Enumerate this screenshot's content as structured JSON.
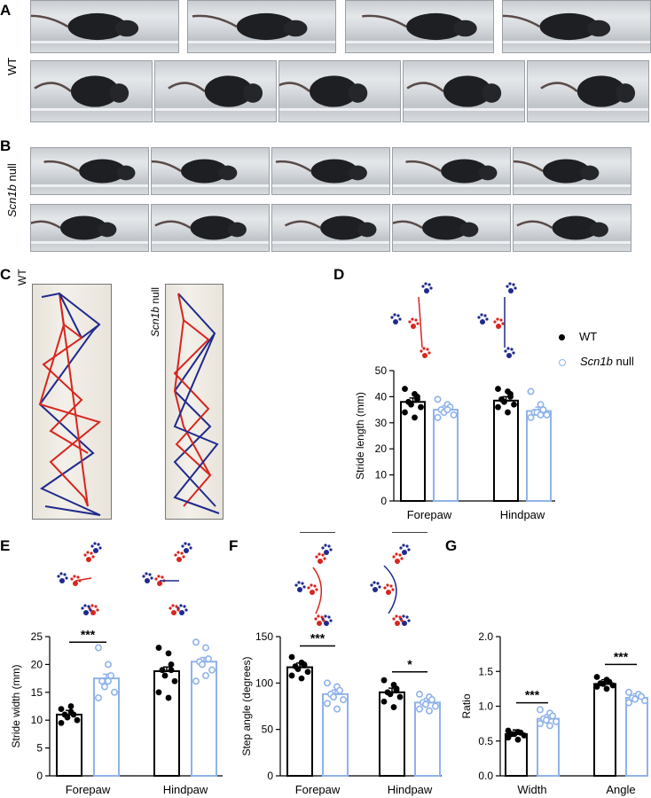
{
  "panels": {
    "A": {
      "letter": "A",
      "row_label": "WT"
    },
    "B": {
      "letter": "B",
      "row_label_italic": "Scn1b",
      "row_label_rest": " null"
    },
    "C": {
      "letter": "C",
      "wt_label": "WT",
      "null_label_italic": "Scn1b",
      "null_label_rest": " null"
    },
    "D": {
      "letter": "D"
    },
    "E": {
      "letter": "E"
    },
    "F": {
      "letter": "F"
    },
    "G": {
      "letter": "G"
    }
  },
  "legend": {
    "wt_label": "WT",
    "null_label_italic": "Scn1b",
    "null_label_rest": " null",
    "wt_color": "#000000",
    "null_color": "#8fb3ea"
  },
  "colors": {
    "paw_red": "#d7261e",
    "paw_blue": "#1f2a8c"
  },
  "chart_data": [
    {
      "panel": "D",
      "type": "bar",
      "categories": [
        "Forepaw",
        "Hindpaw"
      ],
      "ylabel": "Stride length (mm)",
      "ylim": [
        0,
        50
      ],
      "yticks": [
        0,
        10,
        20,
        30,
        40,
        50
      ],
      "series": [
        {
          "name": "WT",
          "values": [
            38,
            38.5
          ],
          "points": [
            [
              43,
              41,
              39,
              38,
              37,
              36,
              34,
              32,
              40
            ],
            [
              43,
              42,
              40,
              39,
              38,
              37,
              36,
              34,
              41
            ]
          ]
        },
        {
          "name": "Scn1b null",
          "values": [
            35,
            34.5
          ],
          "points": [
            [
              39,
              37,
              36,
              35,
              34,
              33,
              32,
              35
            ],
            [
              42,
              37,
              35,
              34,
              34,
              33,
              32,
              33
            ]
          ]
        }
      ],
      "significance": []
    },
    {
      "panel": "E",
      "type": "bar",
      "categories": [
        "Forepaw",
        "Hindpaw"
      ],
      "ylabel": "Stride width (mm)",
      "ylim": [
        0,
        25
      ],
      "yticks": [
        0,
        5,
        10,
        15,
        20,
        25
      ],
      "series": [
        {
          "name": "WT",
          "values": [
            11,
            18.8
          ],
          "points": [
            [
              12,
              11.5,
              11,
              11,
              10.5,
              10,
              9.5,
              12.5
            ],
            [
              23,
              22,
              20,
              19,
              18,
              17,
              15,
              14,
              19
            ]
          ]
        },
        {
          "name": "Scn1b null",
          "values": [
            17.5,
            20.5
          ],
          "points": [
            [
              23,
              20,
              18,
              17,
              16,
              15,
              14,
              17
            ],
            [
              24,
              23,
              21,
              20.5,
              20,
              19,
              17,
              18
            ]
          ]
        }
      ],
      "significance": [
        {
          "category_index": 0,
          "label": "***"
        }
      ]
    },
    {
      "panel": "F",
      "type": "bar",
      "categories": [
        "Forepaw",
        "Hindpaw"
      ],
      "ylabel": "Step angle (degrees)",
      "ylim": [
        0,
        150
      ],
      "yticks": [
        0,
        50,
        100,
        150
      ],
      "series": [
        {
          "name": "WT",
          "values": [
            117,
            90
          ],
          "points": [
            [
              128,
              122,
              120,
              118,
              115,
              112,
              108,
              105,
              119
            ],
            [
              103,
              98,
              94,
              90,
              88,
              85,
              80,
              74,
              92
            ]
          ]
        },
        {
          "name": "Scn1b null",
          "values": [
            88,
            79
          ],
          "points": [
            [
              100,
              96,
              92,
              88,
              85,
              82,
              78,
              72
            ],
            [
              88,
              85,
              82,
              79,
              77,
              75,
              72,
              70
            ]
          ]
        }
      ],
      "significance": [
        {
          "category_index": 0,
          "label": "***"
        },
        {
          "category_index": 1,
          "label": "*"
        }
      ]
    },
    {
      "panel": "G",
      "type": "bar",
      "categories": [
        "Width",
        "Angle"
      ],
      "ylabel": "Ratio",
      "ylim": [
        0,
        2
      ],
      "yticks": [
        0.0,
        0.5,
        1.0,
        1.5,
        2.0
      ],
      "series": [
        {
          "name": "WT",
          "values": [
            0.6,
            1.32
          ],
          "points": [
            [
              0.65,
              0.63,
              0.62,
              0.6,
              0.6,
              0.58,
              0.55,
              0.52
            ],
            [
              1.42,
              1.38,
              1.35,
              1.33,
              1.32,
              1.3,
              1.28,
              1.25
            ]
          ]
        },
        {
          "name": "Scn1b null",
          "values": [
            0.82,
            1.12
          ],
          "points": [
            [
              0.95,
              0.9,
              0.86,
              0.82,
              0.8,
              0.78,
              0.75,
              0.72
            ],
            [
              1.2,
              1.17,
              1.14,
              1.12,
              1.1,
              1.08,
              1.05
            ]
          ]
        }
      ],
      "significance": [
        {
          "category_index": 0,
          "label": "***"
        },
        {
          "category_index": 1,
          "label": "***"
        }
      ]
    }
  ]
}
